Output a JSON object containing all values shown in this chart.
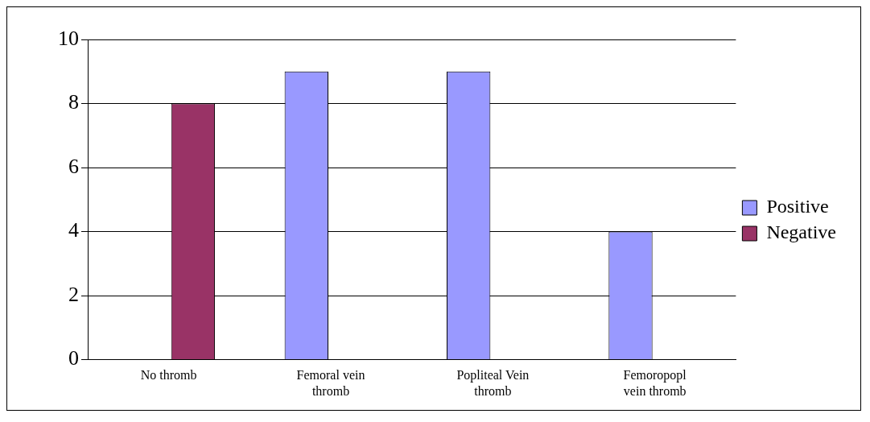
{
  "chart_data": {
    "type": "bar",
    "categories": [
      "No thromb",
      "Femoral vein thromb",
      "Popliteal Vein thromb",
      "Femoropopl vein thromb"
    ],
    "series": [
      {
        "name": "Positive",
        "color": "#9999ff",
        "values": [
          0,
          9,
          9,
          4
        ]
      },
      {
        "name": "Negative",
        "color": "#993366",
        "values": [
          8,
          0,
          0,
          0
        ]
      }
    ],
    "ylim": [
      0,
      10
    ],
    "yticks": [
      0,
      2,
      4,
      6,
      8,
      10
    ],
    "grid": "y",
    "legend": "right"
  }
}
